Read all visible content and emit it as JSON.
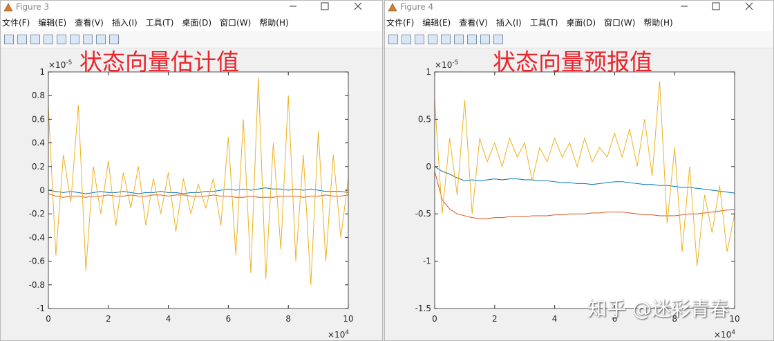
{
  "windows": [
    {
      "title": "Figure 3",
      "menu": [
        "文件(F)",
        "编辑(E)",
        "查看(V)",
        "插入(I)",
        "工具(T)",
        "桌面(D)",
        "窗口(W)",
        "帮助(H)"
      ]
    },
    {
      "title": "Figure 4",
      "menu": [
        "文件(F)",
        "编辑(E)",
        "查看(V)",
        "插入(I)",
        "工具(T)",
        "桌面(D)",
        "窗口(W)",
        "帮助(H)"
      ]
    }
  ],
  "chart_data": [
    {
      "type": "line",
      "annotation": "状态向量估计值",
      "x_scale_label": "×10",
      "x_scale_exponent": "4",
      "y_scale_label": "×10",
      "y_scale_exponent": "-5",
      "xlim": [
        0,
        10
      ],
      "xticks": [
        0,
        2,
        4,
        6,
        8,
        10
      ],
      "ylim": [
        -1,
        1
      ],
      "yticks": [
        -1,
        -0.8,
        -0.6,
        -0.4,
        -0.2,
        0,
        0.2,
        0.4,
        0.6,
        0.8,
        1
      ],
      "x": [
        0,
        0.25,
        0.5,
        0.75,
        1,
        1.25,
        1.5,
        1.75,
        2,
        2.25,
        2.5,
        2.75,
        3,
        3.25,
        3.5,
        3.75,
        4,
        4.25,
        4.5,
        4.75,
        5,
        5.25,
        5.5,
        5.75,
        6,
        6.25,
        6.5,
        6.75,
        7,
        7.25,
        7.5,
        7.75,
        8,
        8.25,
        8.5,
        8.75,
        9,
        9.25,
        9.5,
        9.75,
        10
      ],
      "series": [
        {
          "color": "#0072bd",
          "values": [
            0,
            -0.01,
            -0.02,
            -0.01,
            -0.02,
            -0.03,
            -0.02,
            -0.01,
            -0.02,
            -0.02,
            -0.01,
            -0.02,
            -0.03,
            -0.02,
            -0.02,
            -0.01,
            -0.02,
            -0.02,
            -0.03,
            -0.02,
            -0.02,
            -0.01,
            -0.01,
            0,
            0.01,
            0,
            0.01,
            0,
            0.01,
            0.02,
            0.01,
            0.01,
            0,
            0.01,
            0,
            0.01,
            0,
            -0.01,
            -0.01,
            -0.01,
            -0.02
          ]
        },
        {
          "color": "#d95319",
          "values": [
            -0.03,
            -0.05,
            -0.06,
            -0.05,
            -0.05,
            -0.06,
            -0.05,
            -0.05,
            -0.04,
            -0.05,
            -0.05,
            -0.04,
            -0.05,
            -0.05,
            -0.04,
            -0.04,
            -0.05,
            -0.04,
            -0.04,
            -0.05,
            -0.05,
            -0.05,
            -0.04,
            -0.05,
            -0.05,
            -0.06,
            -0.06,
            -0.05,
            -0.06,
            -0.06,
            -0.06,
            -0.05,
            -0.05,
            -0.05,
            -0.06,
            -0.05,
            -0.05,
            -0.04,
            -0.05,
            -0.05,
            -0.04
          ]
        },
        {
          "color": "#edb120",
          "values": [
            0.7,
            -0.55,
            0.3,
            -0.1,
            0.72,
            -0.68,
            0.2,
            -0.2,
            0.25,
            -0.3,
            0.15,
            -0.15,
            0.2,
            -0.3,
            0.1,
            -0.2,
            0.15,
            -0.35,
            0.1,
            -0.2,
            0.05,
            -0.15,
            0.1,
            -0.3,
            0.45,
            -0.55,
            0.6,
            -0.7,
            0.95,
            -0.75,
            0.4,
            -0.5,
            0.8,
            -0.6,
            0.3,
            -0.8,
            0.5,
            -0.6,
            0.3,
            -0.4,
            0.1
          ]
        }
      ]
    },
    {
      "type": "line",
      "annotation": "状态向量预报值",
      "x_scale_label": "×10",
      "x_scale_exponent": "4",
      "y_scale_label": "×10",
      "y_scale_exponent": "-5",
      "xlim": [
        0,
        10
      ],
      "xticks": [
        0,
        2,
        4,
        6,
        8,
        10
      ],
      "ylim": [
        -1.5,
        1
      ],
      "yticks": [
        -1.5,
        -1,
        -0.5,
        0,
        0.5,
        1
      ],
      "x": [
        0,
        0.25,
        0.5,
        0.75,
        1,
        1.25,
        1.5,
        1.75,
        2,
        2.25,
        2.5,
        2.75,
        3,
        3.25,
        3.5,
        3.75,
        4,
        4.25,
        4.5,
        4.75,
        5,
        5.25,
        5.5,
        5.75,
        6,
        6.25,
        6.5,
        6.75,
        7,
        7.25,
        7.5,
        7.75,
        8,
        8.25,
        8.5,
        8.75,
        9,
        9.25,
        9.5,
        9.75,
        10
      ],
      "series": [
        {
          "color": "#0072bd",
          "values": [
            0,
            -0.05,
            -0.08,
            -0.12,
            -0.15,
            -0.14,
            -0.15,
            -0.14,
            -0.13,
            -0.14,
            -0.13,
            -0.13,
            -0.14,
            -0.14,
            -0.15,
            -0.15,
            -0.16,
            -0.17,
            -0.17,
            -0.18,
            -0.18,
            -0.19,
            -0.18,
            -0.17,
            -0.16,
            -0.16,
            -0.17,
            -0.18,
            -0.19,
            -0.19,
            -0.2,
            -0.2,
            -0.21,
            -0.22,
            -0.22,
            -0.23,
            -0.24,
            -0.25,
            -0.26,
            -0.27,
            -0.28
          ]
        },
        {
          "color": "#d95319",
          "values": [
            -0.05,
            -0.35,
            -0.45,
            -0.5,
            -0.52,
            -0.54,
            -0.55,
            -0.55,
            -0.54,
            -0.54,
            -0.53,
            -0.53,
            -0.53,
            -0.52,
            -0.52,
            -0.52,
            -0.51,
            -0.51,
            -0.5,
            -0.5,
            -0.5,
            -0.49,
            -0.49,
            -0.48,
            -0.48,
            -0.48,
            -0.49,
            -0.5,
            -0.51,
            -0.51,
            -0.52,
            -0.52,
            -0.52,
            -0.51,
            -0.5,
            -0.5,
            -0.49,
            -0.48,
            -0.47,
            -0.46,
            -0.45
          ]
        },
        {
          "color": "#edb120",
          "values": [
            0.7,
            -0.5,
            0.3,
            -0.3,
            0.7,
            -0.5,
            0.3,
            0.05,
            0.25,
            0,
            0.3,
            0.1,
            0.25,
            -0.15,
            0.2,
            0.05,
            0.3,
            0.1,
            0.25,
            0,
            0.3,
            0.05,
            0.2,
            0.1,
            0.35,
            0.1,
            0.4,
            0,
            0.5,
            -0.1,
            0.9,
            -0.6,
            0.2,
            -0.9,
            0,
            -1.05,
            -0.3,
            -0.7,
            -0.2,
            -0.9,
            -0.5
          ]
        }
      ]
    }
  ],
  "watermark": "知乎 @迷彩青春"
}
